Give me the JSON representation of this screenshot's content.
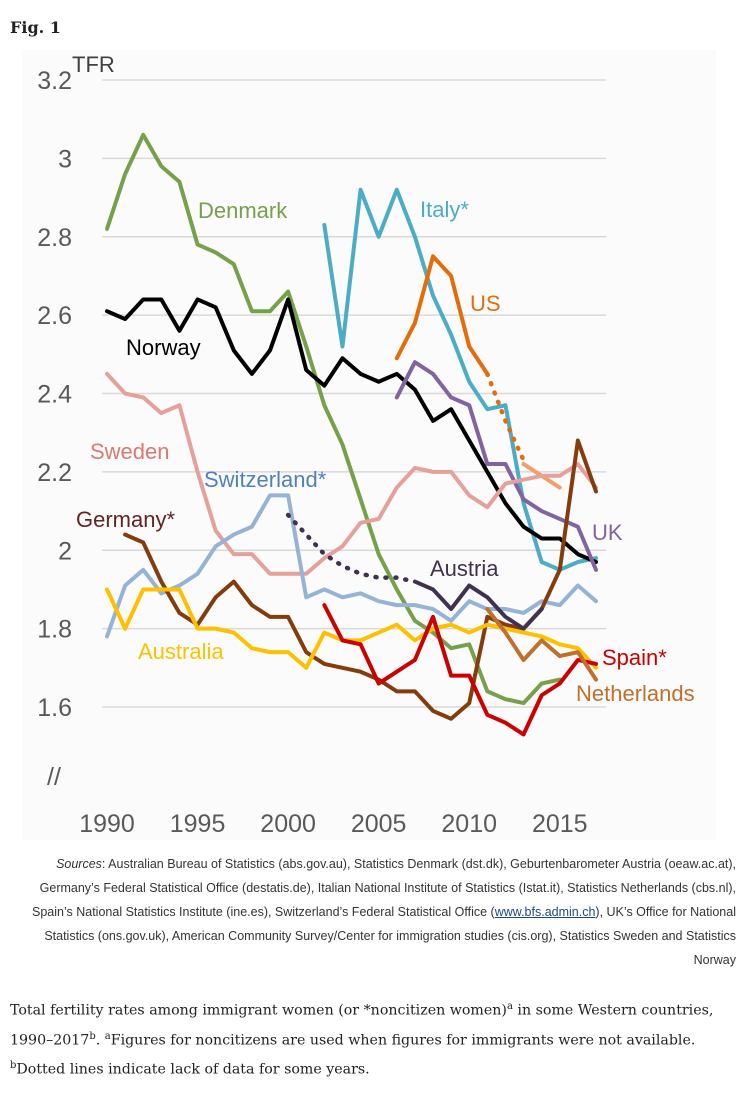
{
  "figure_label": "Fig. 1",
  "chart_data": {
    "type": "line",
    "ylabel": "TFR",
    "xlabel": "",
    "xlim": [
      1988.5,
      2019.5
    ],
    "ylim": [
      1.43,
      3.25
    ],
    "x_ticks": [
      "1990",
      "1995",
      "2000",
      "2005",
      "2010",
      "2015"
    ],
    "y_ticks": [
      "3.2",
      "3",
      "2.8",
      "2.6",
      "2.4",
      "2.2",
      "2",
      "1.8",
      "1.6"
    ],
    "grid": "horizontal",
    "axis_break": "//",
    "series": [
      {
        "name": "Denmark",
        "label": "Denmark",
        "color": "#77a04a",
        "x": [
          1990,
          1991,
          1992,
          1993,
          1994,
          1995,
          1996,
          1997,
          1998,
          1999,
          2000,
          2001,
          2002,
          2003,
          2004,
          2005,
          2006,
          2007,
          2008,
          2009,
          2010,
          2011,
          2012,
          2013,
          2014,
          2015
        ],
        "y": [
          2.82,
          2.96,
          3.06,
          2.98,
          2.94,
          2.78,
          2.76,
          2.73,
          2.61,
          2.61,
          2.66,
          2.52,
          2.37,
          2.27,
          2.13,
          1.99,
          1.9,
          1.82,
          1.79,
          1.75,
          1.76,
          1.64,
          1.62,
          1.61,
          1.66,
          1.67
        ]
      },
      {
        "name": "Italy*",
        "label": "Italy*",
        "color": "#4bacc6",
        "x": [
          2002,
          2003,
          2004,
          2005,
          2006,
          2007,
          2008,
          2009,
          2010,
          2011,
          2012,
          2013,
          2014,
          2015,
          2016,
          2017
        ],
        "y": [
          2.83,
          2.52,
          2.92,
          2.8,
          2.92,
          2.8,
          2.65,
          2.55,
          2.43,
          2.36,
          2.37,
          2.12,
          1.97,
          1.95,
          1.97,
          1.98
        ]
      },
      {
        "name": "US",
        "label": "US",
        "color": "#e46c0a",
        "x": [
          2006,
          2007,
          2008,
          2009,
          2010,
          2011
        ],
        "y": [
          2.49,
          2.58,
          2.75,
          2.7,
          2.52,
          2.45
        ],
        "dotted": {
          "x": [
            2011,
            2012,
            2013
          ],
          "y": [
            2.45,
            2.33,
            2.23
          ]
        }
      },
      {
        "name": "US-recent",
        "label": "",
        "color": "#f0a06a",
        "x": [
          2013,
          2014,
          2015
        ],
        "y": [
          2.22,
          2.19,
          2.16
        ]
      },
      {
        "name": "Norway",
        "label": "Norway",
        "color": "#000000",
        "x": [
          1990,
          1991,
          1992,
          1993,
          1994,
          1995,
          1996,
          1997,
          1998,
          1999,
          2000,
          2001,
          2002,
          2003,
          2004,
          2005,
          2006,
          2007,
          2008,
          2009,
          2010,
          2011,
          2012,
          2013,
          2014,
          2015,
          2016,
          2017
        ],
        "y": [
          2.61,
          2.59,
          2.64,
          2.64,
          2.56,
          2.64,
          2.62,
          2.51,
          2.45,
          2.51,
          2.64,
          2.46,
          2.42,
          2.49,
          2.45,
          2.43,
          2.45,
          2.41,
          2.33,
          2.36,
          2.28,
          2.2,
          2.12,
          2.06,
          2.03,
          2.03,
          1.99,
          1.97
        ]
      },
      {
        "name": "UK",
        "label": "UK",
        "color": "#8064a2",
        "x": [
          2006,
          2007,
          2008,
          2009,
          2010,
          2011,
          2012,
          2013,
          2014,
          2015,
          2016,
          2017
        ],
        "y": [
          2.39,
          2.48,
          2.45,
          2.39,
          2.37,
          2.22,
          2.22,
          2.13,
          2.1,
          2.08,
          2.06,
          1.95
        ]
      },
      {
        "name": "Sweden",
        "label": "Sweden",
        "color": "#e6a09a",
        "x": [
          1990,
          1991,
          1992,
          1993,
          1994,
          1995,
          1996,
          1997,
          1998,
          1999,
          2000,
          2001,
          2002,
          2003,
          2004,
          2005,
          2006,
          2007,
          2008,
          2009,
          2010,
          2011,
          2012,
          2013,
          2014,
          2015,
          2016,
          2017
        ],
        "y": [
          2.45,
          2.4,
          2.39,
          2.35,
          2.37,
          2.2,
          2.05,
          1.99,
          1.99,
          1.94,
          1.94,
          1.94,
          1.98,
          2.01,
          2.07,
          2.08,
          2.16,
          2.21,
          2.2,
          2.2,
          2.14,
          2.11,
          2.17,
          2.18,
          2.19,
          2.19,
          2.22,
          2.16
        ]
      },
      {
        "name": "Switzerland*",
        "label": "Switzerland*",
        "color": "#95b3d7",
        "x": [
          1990,
          1991,
          1992,
          1993,
          1994,
          1995,
          1996,
          1997,
          1998,
          1999,
          2000,
          2001,
          2002,
          2003,
          2004,
          2005,
          2006,
          2007,
          2008,
          2009,
          2010,
          2011,
          2012,
          2013,
          2014,
          2015,
          2016,
          2017
        ],
        "y": [
          1.78,
          1.91,
          1.95,
          1.89,
          1.91,
          1.94,
          2.01,
          2.04,
          2.06,
          2.14,
          2.14,
          1.88,
          1.9,
          1.88,
          1.89,
          1.87,
          1.86,
          1.86,
          1.85,
          1.82,
          1.87,
          1.85,
          1.85,
          1.84,
          1.87,
          1.86,
          1.91,
          1.87
        ]
      },
      {
        "name": "Germany*",
        "label": "Germany*",
        "color": "#843c0c",
        "x": [
          1991,
          1992,
          1993,
          1994,
          1995,
          1996,
          1997,
          1998,
          1999,
          2000,
          2001,
          2002,
          2003,
          2004,
          2005,
          2006,
          2007,
          2008,
          2009,
          2010,
          2011,
          2012,
          2013,
          2014,
          2015,
          2016,
          2017
        ],
        "y": [
          2.04,
          2.02,
          1.92,
          1.84,
          1.81,
          1.88,
          1.92,
          1.86,
          1.83,
          1.83,
          1.74,
          1.71,
          1.7,
          1.69,
          1.67,
          1.64,
          1.64,
          1.59,
          1.57,
          1.61,
          1.83,
          1.81,
          1.8,
          1.85,
          1.95,
          2.28,
          2.15
        ]
      },
      {
        "name": "Germany-extra",
        "label": "",
        "color": "#632523",
        "x": [
          1991,
          1992,
          1993,
          1994,
          1995,
          1996,
          1997,
          1998,
          1999,
          2000,
          2001,
          2002,
          2003,
          2004,
          2005,
          2006,
          2007,
          2008,
          2009,
          2010,
          2011,
          2012,
          2013,
          2014,
          2015,
          2016,
          2017
        ],
        "y": [
          2.04,
          2.02,
          1.92,
          1.84,
          1.81,
          1.88,
          1.92,
          1.86,
          1.83,
          1.83,
          1.74,
          1.71,
          1.7,
          1.69,
          1.67,
          1.64,
          1.64,
          1.59,
          1.57,
          1.61,
          1.83,
          1.81,
          1.8,
          1.85,
          1.95,
          2.28,
          2.15
        ]
      },
      {
        "name": "Austria",
        "label": "Austria",
        "color": "#403151",
        "x": [
          2007,
          2008,
          2009,
          2010,
          2011,
          2012,
          2013,
          2014
        ],
        "y": [
          1.92,
          1.9,
          1.85,
          1.91,
          1.88,
          1.83,
          1.8,
          1.85
        ],
        "dotted": {
          "x": [
            2000,
            2001,
            2002,
            2003,
            2004,
            2005,
            2006,
            2007
          ],
          "y": [
            2.09,
            2.04,
            1.99,
            1.96,
            1.94,
            1.93,
            1.93,
            1.92
          ]
        }
      },
      {
        "name": "Australia",
        "label": "Australia",
        "color": "#ffc000",
        "x": [
          1990,
          1991,
          1992,
          1993,
          1994,
          1995,
          1996,
          1997,
          1998,
          1999,
          2000,
          2001,
          2002,
          2003,
          2004,
          2005,
          2006,
          2007,
          2008,
          2009,
          2010,
          2011,
          2012,
          2013,
          2014,
          2015,
          2016,
          2017
        ],
        "y": [
          1.9,
          1.8,
          1.9,
          1.9,
          1.9,
          1.8,
          1.8,
          1.79,
          1.75,
          1.74,
          1.74,
          1.7,
          1.79,
          1.77,
          1.77,
          1.79,
          1.81,
          1.77,
          1.8,
          1.81,
          1.79,
          1.81,
          1.8,
          1.79,
          1.78,
          1.76,
          1.75,
          1.7
        ]
      },
      {
        "name": "Spain*",
        "label": "Spain*",
        "color": "#cc0000",
        "x": [
          2002,
          2003,
          2004,
          2005,
          2006,
          2007,
          2008,
          2009,
          2010,
          2011,
          2012,
          2013,
          2014,
          2015,
          2016,
          2017
        ],
        "y": [
          1.86,
          1.77,
          1.76,
          1.66,
          1.69,
          1.72,
          1.83,
          1.68,
          1.68,
          1.58,
          1.56,
          1.53,
          1.63,
          1.66,
          1.72,
          1.71
        ]
      },
      {
        "name": "Netherlands",
        "label": "Netherlands",
        "color": "#c0702a",
        "x": [
          2011,
          2012,
          2013,
          2014,
          2015,
          2016,
          2017
        ],
        "y": [
          1.85,
          1.79,
          1.72,
          1.77,
          1.73,
          1.74,
          1.67
        ]
      }
    ],
    "labels": [
      {
        "text": "Denmark",
        "color": "#77a04a"
      },
      {
        "text": "Italy*",
        "color": "#4bacc6"
      },
      {
        "text": "US",
        "color": "#e46c0a"
      },
      {
        "text": "Norway",
        "color": "#000000"
      },
      {
        "text": "Sweden",
        "color": "#d97a72"
      },
      {
        "text": "Switzerland*",
        "color": "#4f81bd"
      },
      {
        "text": "Germany*",
        "color": "#632523"
      },
      {
        "text": "UK",
        "color": "#8064a2"
      },
      {
        "text": "Austria",
        "color": "#403151"
      },
      {
        "text": "Australia",
        "color": "#ffc000"
      },
      {
        "text": "Spain*",
        "color": "#cc0000"
      },
      {
        "text": "Netherlands",
        "color": "#c0702a"
      }
    ]
  },
  "sources": {
    "label": "Sources",
    "text_1": ": Australian Bureau of Statistics (abs.gov.au), Statistics Denmark (dst.dk), Geburtenbarometer Austria (oeaw.ac.at), Germany’s Federal Statistical Office (destatis.de), Italian National Institute of Statistics (Istat.it), Statistics Netherlands (cbs.nl), Spain’s National Statistics Institute (ine.es), Switzerland’s Federal Statistical Office (",
    "link": "www.bfs.admin.ch",
    "text_2": "), UK’s Office for National Statistics (ons.gov.uk), American Community Survey/Center for immigration studies (cis.org), Statistics Sweden and Statistics Norway"
  },
  "caption": {
    "part_1": "Total fertility rates among immigrant women (or *noncitizen women)",
    "sup_a": "a",
    "part_2": " in some Western countries, 1990–2017",
    "sup_b": "b",
    "part_3": ". ",
    "sup_a2": "a",
    "part_4": "Figures for noncitizens are used when figures for immigrants were not available. ",
    "sup_b2": "b",
    "part_5": "Dotted lines indicate lack of data for some years."
  }
}
